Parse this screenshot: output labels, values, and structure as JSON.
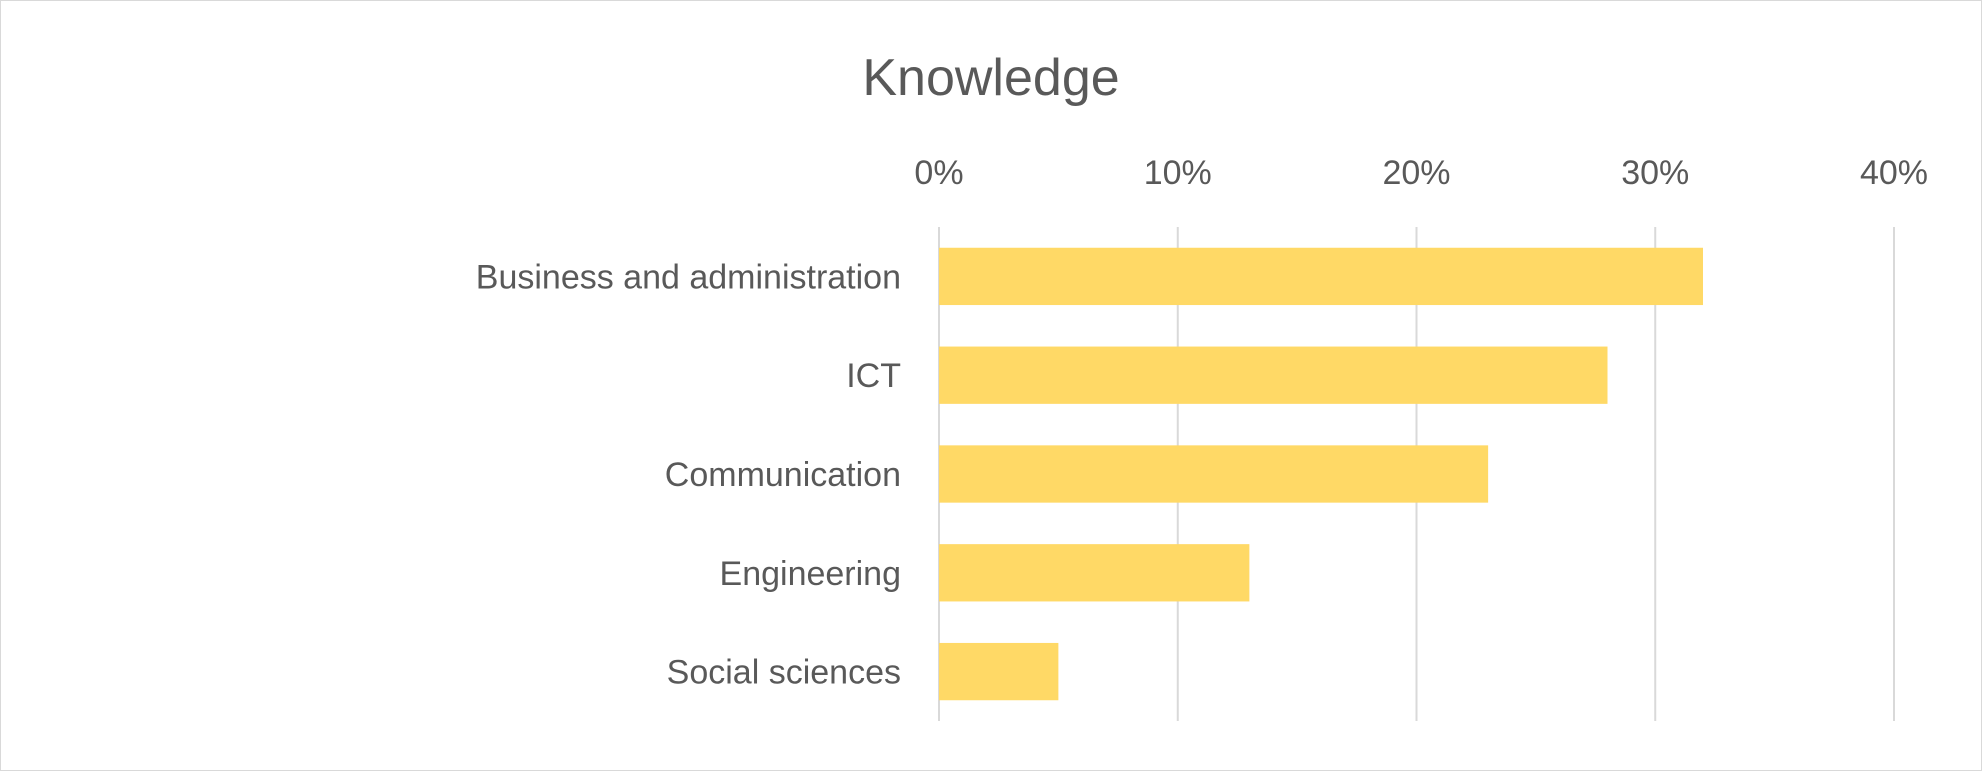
{
  "chart_data": {
    "type": "bar",
    "orientation": "horizontal",
    "title": "Knowledge",
    "categories": [
      "Business and administration",
      "ICT",
      "Communication",
      "Engineering",
      "Social sciences"
    ],
    "values": [
      0.32,
      0.28,
      0.23,
      0.13,
      0.05
    ],
    "xlim": [
      0,
      0.4
    ],
    "x_ticks": [
      0,
      0.1,
      0.2,
      0.3,
      0.4
    ],
    "x_tick_labels": [
      "0%",
      "10%",
      "20%",
      "30%",
      "40%"
    ],
    "x_axis_position": "top",
    "xlabel": "",
    "ylabel": "",
    "grid": true,
    "legend": false,
    "bar_color": "#FFD966",
    "gridline_color": "#D9D9D9",
    "text_color": "#595959"
  }
}
